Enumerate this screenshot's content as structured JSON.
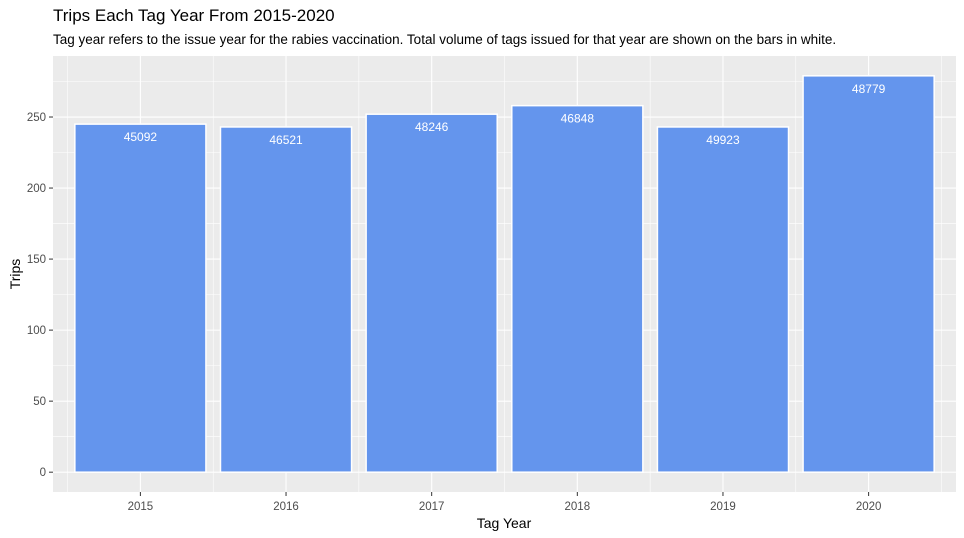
{
  "chart_data": {
    "type": "bar",
    "title": "Trips Each Tag Year From 2015-2020",
    "subtitle": "Tag year refers to the issue year for the rabies vaccination. Total volume of tags issued for that year are shown on the bars in white.",
    "xlabel": "Tag Year",
    "ylabel": "Trips",
    "categories": [
      "2015",
      "2016",
      "2017",
      "2018",
      "2019",
      "2020"
    ],
    "values": [
      245,
      243,
      252,
      258,
      243,
      279
    ],
    "bar_labels": [
      "45092",
      "46521",
      "48246",
      "46848",
      "49923",
      "48779"
    ],
    "yticks": [
      0,
      50,
      100,
      150,
      200,
      250
    ],
    "ylim": [
      -13.95,
      292.95
    ],
    "grid": true,
    "colors": {
      "bar": "#6495ED",
      "panel": "#EBEBEB",
      "grid": "#FFFFFF",
      "bar_label": "#FFFFFF"
    }
  }
}
